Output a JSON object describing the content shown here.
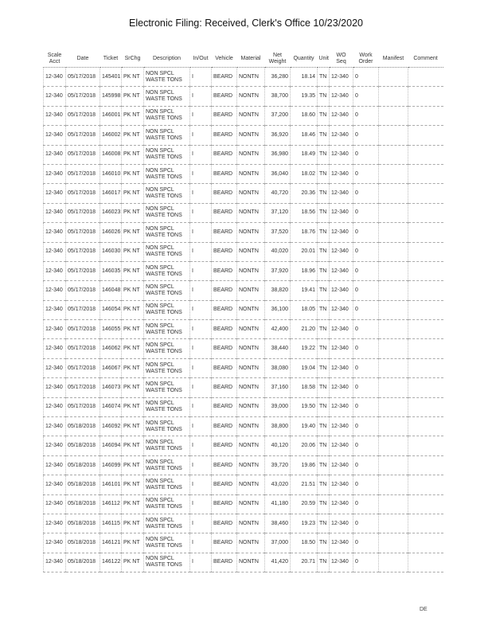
{
  "title": "Electronic Filing: Received, Clerk's Office 10/23/2020",
  "columns": [
    "Scale Acct",
    "Date",
    "Ticket",
    "SrChg",
    "Description",
    "In/Out",
    "Vehicle",
    "Material",
    "Net Weight",
    "Quantity",
    "Unit",
    "WO Seq",
    "Work Order",
    "Manifest",
    "Comment"
  ],
  "rows": [
    [
      "12-340",
      "05/17/2018",
      "145401",
      "PK NT",
      "NON SPCL WASTE TONS",
      "I",
      "BEARD",
      "NONTN",
      "36,280",
      "18.14",
      "TN",
      "12-340",
      "0",
      "",
      ""
    ],
    [
      "12-340",
      "05/17/2018",
      "145998",
      "PK NT",
      "NON SPCL WASTE TONS",
      "I",
      "BEARD",
      "NONTN",
      "38,700",
      "19.35",
      "TN",
      "12-340",
      "0",
      "",
      ""
    ],
    [
      "12-340",
      "05/17/2018",
      "146001",
      "PK NT",
      "NON SPCL WASTE TONS",
      "I",
      "BEARD",
      "NONTN",
      "37,200",
      "18.60",
      "TN",
      "12-340",
      "0",
      "",
      ""
    ],
    [
      "12-340",
      "05/17/2018",
      "146002",
      "PK NT",
      "NON SPCL WASTE TONS",
      "I",
      "BEARD",
      "NONTN",
      "36,920",
      "18.46",
      "TN",
      "12-340",
      "0",
      "",
      ""
    ],
    [
      "12-340",
      "05/17/2018",
      "146008",
      "PK NT",
      "NON SPCL WASTE TONS",
      "I",
      "BEARD",
      "NONTN",
      "36,980",
      "18.49",
      "TN",
      "12-340",
      "0",
      "",
      ""
    ],
    [
      "12-340",
      "05/17/2018",
      "146010",
      "PK NT",
      "NON SPCL WASTE TONS",
      "I",
      "BEARD",
      "NONTN",
      "36,040",
      "18.02",
      "TN",
      "12-340",
      "0",
      "",
      ""
    ],
    [
      "12-340",
      "05/17/2018",
      "146017",
      "PK NT",
      "NON SPCL WASTE TONS",
      "I",
      "BEARD",
      "NONTN",
      "40,720",
      "20.36",
      "TN",
      "12-340",
      "0",
      "",
      ""
    ],
    [
      "12-340",
      "05/17/2018",
      "146023",
      "PK NT",
      "NON SPCL WASTE TONS",
      "I",
      "BEARD",
      "NONTN",
      "37,120",
      "18.56",
      "TN",
      "12-340",
      "0",
      "",
      ""
    ],
    [
      "12-340",
      "05/17/2018",
      "146026",
      "PK NT",
      "NON SPCL WASTE TONS",
      "I",
      "BEARD",
      "NONTN",
      "37,520",
      "18.76",
      "TN",
      "12-340",
      "0",
      "",
      ""
    ],
    [
      "12-340",
      "05/17/2018",
      "146030",
      "PK NT",
      "NON SPCL WASTE TONS",
      "I",
      "BEARD",
      "NONTN",
      "40,020",
      "20.01",
      "TN",
      "12-340",
      "0",
      "",
      ""
    ],
    [
      "12-340",
      "05/17/2018",
      "146035",
      "PK NT",
      "NON SPCL WASTE TONS",
      "I",
      "BEARD",
      "NONTN",
      "37,920",
      "18.96",
      "TN",
      "12-340",
      "0",
      "",
      ""
    ],
    [
      "12-340",
      "05/17/2018",
      "146048",
      "PK NT",
      "NON SPCL WASTE TONS",
      "I",
      "BEARD",
      "NONTN",
      "38,820",
      "19.41",
      "TN",
      "12-340",
      "0",
      "",
      ""
    ],
    [
      "12-340",
      "05/17/2018",
      "146054",
      "PK NT",
      "NON SPCL WASTE TONS",
      "I",
      "BEARD",
      "NONTN",
      "36,100",
      "18.05",
      "TN",
      "12-340",
      "0",
      "",
      ""
    ],
    [
      "12-340",
      "05/17/2018",
      "146055",
      "PK NT",
      "NON SPCL WASTE TONS",
      "I",
      "BEARD",
      "NONTN",
      "42,400",
      "21.20",
      "TN",
      "12-340",
      "0",
      "",
      ""
    ],
    [
      "12-340",
      "05/17/2018",
      "146062",
      "PK NT",
      "NON SPCL WASTE TONS",
      "I",
      "BEARD",
      "NONTN",
      "38,440",
      "19.22",
      "TN",
      "12-340",
      "0",
      "",
      ""
    ],
    [
      "12-340",
      "05/17/2018",
      "146067",
      "PK NT",
      "NON SPCL WASTE TONS",
      "I",
      "BEARD",
      "NONTN",
      "38,080",
      "19.04",
      "TN",
      "12-340",
      "0",
      "",
      ""
    ],
    [
      "12-340",
      "05/17/2018",
      "146073",
      "PK NT",
      "NON SPCL WASTE TONS",
      "I",
      "BEARD",
      "NONTN",
      "37,160",
      "18.58",
      "TN",
      "12-340",
      "0",
      "",
      ""
    ],
    [
      "12-340",
      "05/17/2018",
      "146074",
      "PK NT",
      "NON SPCL WASTE TONS",
      "I",
      "BEARD",
      "NONTN",
      "39,000",
      "19.50",
      "TN",
      "12-340",
      "0",
      "",
      ""
    ],
    [
      "12-340",
      "05/18/2018",
      "146092",
      "PK NT",
      "NON SPCL WASTE TONS",
      "I",
      "BEARD",
      "NONTN",
      "38,800",
      "19.40",
      "TN",
      "12-340",
      "0",
      "",
      ""
    ],
    [
      "12-340",
      "05/18/2018",
      "146094",
      "PK NT",
      "NON SPCL WASTE TONS",
      "I",
      "BEARD",
      "NONTN",
      "40,120",
      "20.06",
      "TN",
      "12-340",
      "0",
      "",
      ""
    ],
    [
      "12-340",
      "05/18/2018",
      "146099",
      "PK NT",
      "NON SPCL WASTE TONS",
      "I",
      "BEARD",
      "NONTN",
      "39,720",
      "19.86",
      "TN",
      "12-340",
      "0",
      "",
      ""
    ],
    [
      "12-340",
      "05/18/2018",
      "146101",
      "PK NT",
      "NON SPCL WASTE TONS",
      "I",
      "BEARD",
      "NONTN",
      "43,020",
      "21.51",
      "TN",
      "12-340",
      "0",
      "",
      ""
    ],
    [
      "12-340",
      "05/18/2018",
      "146112",
      "PK NT",
      "NON SPCL WASTE TONS",
      "I",
      "BEARD",
      "NONTN",
      "41,180",
      "20.59",
      "TN",
      "12-340",
      "0",
      "",
      ""
    ],
    [
      "12-340",
      "05/18/2018",
      "146115",
      "PK NT",
      "NON SPCL WASTE TONS",
      "I",
      "BEARD",
      "NONTN",
      "38,460",
      "19.23",
      "TN",
      "12-340",
      "0",
      "",
      ""
    ],
    [
      "12-340",
      "05/18/2018",
      "146121",
      "PK NT",
      "NON SPCL WASTE TONS",
      "I",
      "BEARD",
      "NONTN",
      "37,000",
      "18.50",
      "TN",
      "12-340",
      "0",
      "",
      ""
    ],
    [
      "12-340",
      "05/18/2018",
      "146122",
      "PK NT",
      "NON SPCL WASTE TONS",
      "I",
      "BEARD",
      "NONTN",
      "41,420",
      "20.71",
      "TN",
      "12-340",
      "0",
      "",
      ""
    ]
  ],
  "footer": "DE"
}
